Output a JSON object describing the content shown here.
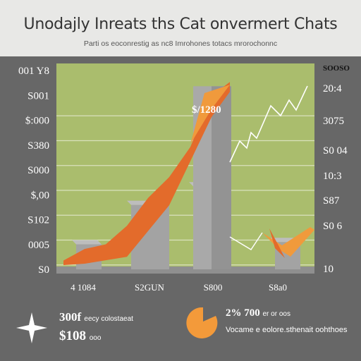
{
  "header": {
    "title": "Unodajly Inreats ths Cat onvermert Chats",
    "subtitle": "Parti os eoconrestig as nc8 Imrohones totacs mrorochonnc"
  },
  "chart_data": {
    "type": "area",
    "title": "Unodajly Inreats ths Cat onvermert Chats",
    "y_left_ticks": [
      "001 Y8",
      "S001",
      "$:000",
      "S380",
      "S000",
      "$,00",
      "S102",
      "0005",
      "S0"
    ],
    "y_right_ticks": [
      "SOOSO",
      "20:4",
      "3075",
      "S0 04",
      "10:3",
      "S87",
      "S0 6",
      "10"
    ],
    "x_tick_labels": [
      "4 1084",
      "S2GUN",
      "S800",
      "S8a0"
    ],
    "annotation": "$/1280",
    "series": [
      {
        "values": [
          5,
          10,
          12,
          20,
          32,
          41,
          54,
          76,
          82
        ]
      }
    ],
    "bars": [
      {
        "value": 12
      },
      {
        "value": 29
      },
      {
        "value": 37
      },
      {
        "value": 82
      },
      {
        "value": 13
      }
    ],
    "colors": {
      "panel": "#aabd6d",
      "bar": "#a3a3a3",
      "area_front": "#e36b2b",
      "area_back": "#f09a3c",
      "line": "#ffffff"
    }
  },
  "footer": {
    "left_value1": "300f",
    "left_text1": "eecy colostaeat",
    "left_value2": "$108",
    "left_text2": "ooo",
    "right_value": "2% 700",
    "right_text1": "er or oos",
    "right_text2": "Vocame e eolore.sthenait oohthoes"
  }
}
